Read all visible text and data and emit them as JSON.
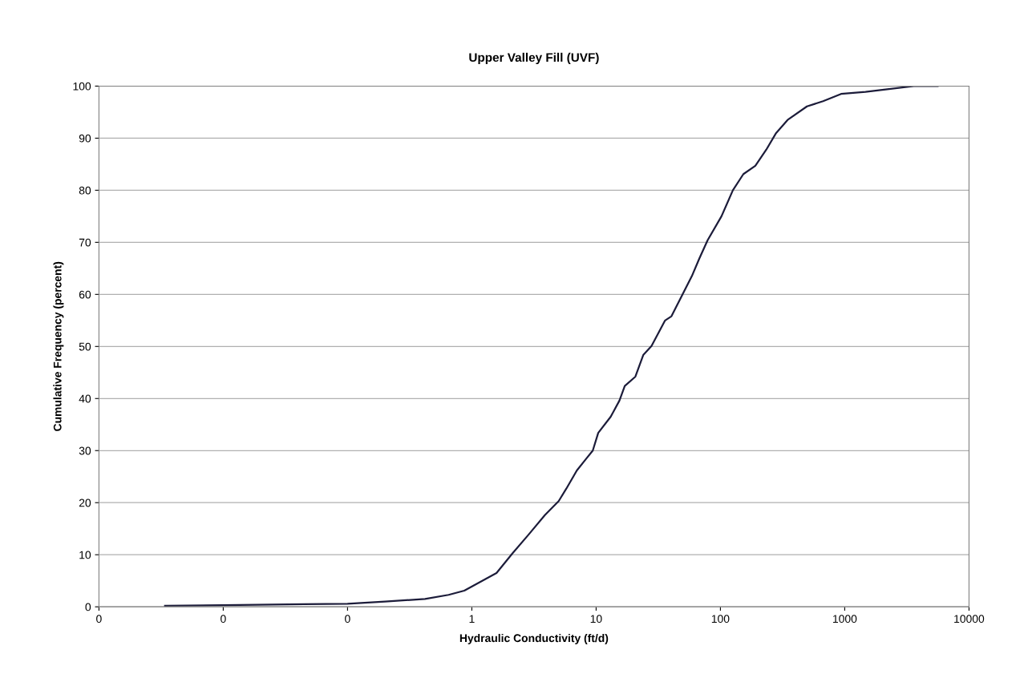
{
  "chart_data": {
    "type": "line",
    "title": "Upper Valley Fill (UVF)",
    "xlabel": "Hydraulic Conductivity (ft/d)",
    "ylabel": "Cumulative Frequency (percent)",
    "log": "x",
    "grid": "y",
    "xlim": [
      0.001,
      10000
    ],
    "xticks": [
      {
        "value": 0.001,
        "label": "0"
      },
      {
        "value": 0.01,
        "label": "0"
      },
      {
        "value": 0.1,
        "label": "0"
      },
      1,
      10,
      100,
      1000,
      10000
    ],
    "ylim": [
      0,
      100
    ],
    "yticks": [
      0,
      10,
      20,
      30,
      40,
      50,
      60,
      70,
      80,
      90,
      100
    ],
    "series": [
      {
        "color": "#1c1c3a",
        "x": [
          0.0034,
          0.01,
          0.045,
          0.1,
          0.2,
          0.42,
          0.65,
          0.87,
          1.58,
          2.13,
          2.87,
          3.87,
          5.0,
          5.76,
          7.0,
          8.3,
          9.4,
          10.4,
          13.1,
          15.4,
          17.0,
          20.7,
          24.0,
          27.9,
          35.9,
          40.4,
          49.8,
          58.9,
          67.7,
          78.9,
          102,
          126,
          153,
          191,
          234,
          279,
          347,
          497,
          670,
          935,
          1470,
          2200,
          3590,
          5600
        ],
        "values": [
          0.2,
          0.3,
          0.5,
          0.6,
          1.0,
          1.5,
          2.3,
          3.1,
          6.5,
          10.3,
          13.9,
          17.6,
          20.3,
          22.7,
          26.2,
          28.4,
          30.0,
          33.4,
          36.5,
          39.6,
          42.4,
          44.2,
          48.4,
          50.1,
          55.0,
          55.8,
          60.1,
          63.5,
          66.9,
          70.4,
          75.0,
          80.0,
          83.1,
          84.7,
          87.8,
          90.9,
          93.5,
          96.1,
          97.1,
          98.5,
          98.9,
          99.4,
          100,
          100
        ]
      }
    ]
  }
}
